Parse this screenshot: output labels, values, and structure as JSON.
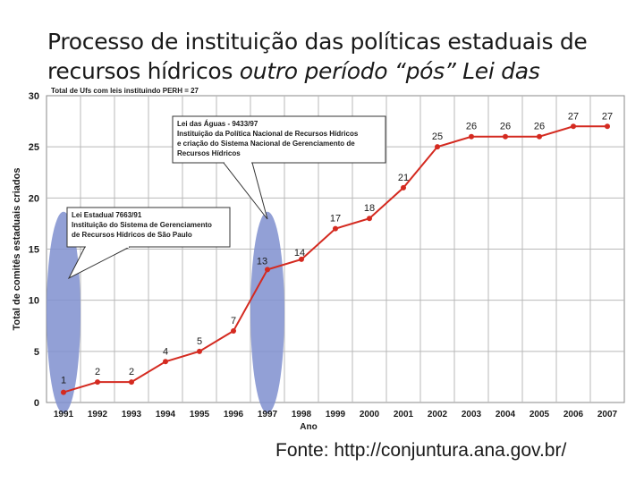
{
  "slide": {
    "title_line1": "Processo de instituição das políticas estaduais de",
    "title_line2_normal": "recursos hídricos ",
    "title_line2_italic": "outro período “pós” Lei das",
    "source": "Fonte: http://conjuntura.ana.gov.br/"
  },
  "chart_data": {
    "type": "line",
    "header_note": "Total de Ufs com leis instituindo PERH  = 27",
    "xlabel": "Ano",
    "ylabel": "Total de comitês estaduais criados",
    "x": [
      "1991",
      "1992",
      "1993",
      "1994",
      "1995",
      "1996",
      "1997",
      "1998",
      "1999",
      "2000",
      "2001",
      "2002",
      "2003",
      "2004",
      "2005",
      "2006",
      "2007"
    ],
    "y": [
      1,
      2,
      2,
      4,
      5,
      7,
      13,
      14,
      17,
      18,
      21,
      25,
      26,
      26,
      26,
      27,
      27
    ],
    "ylim": [
      0,
      30
    ],
    "yticks": [
      0,
      5,
      10,
      15,
      20,
      25,
      30
    ],
    "grid": true,
    "line_color": "#d42a20",
    "highlight_color": "#7f8fcf",
    "highlighted_years": [
      "1991",
      "1997"
    ],
    "annotations": [
      {
        "target": "1991",
        "lines": [
          "Lei Estadual 7663/91",
          "Instituição do Sistema de Gerenciamento",
          "de Recursos Hídricos de São Paulo"
        ]
      },
      {
        "target": "1997",
        "lines": [
          "Lei das Águas - 9433/97",
          "Instituição da Política Nacional de Recursos Hídricos",
          "e criação do Sistema Nacional de Gerenciamento de",
          "Recursos Hídricos"
        ]
      }
    ]
  }
}
